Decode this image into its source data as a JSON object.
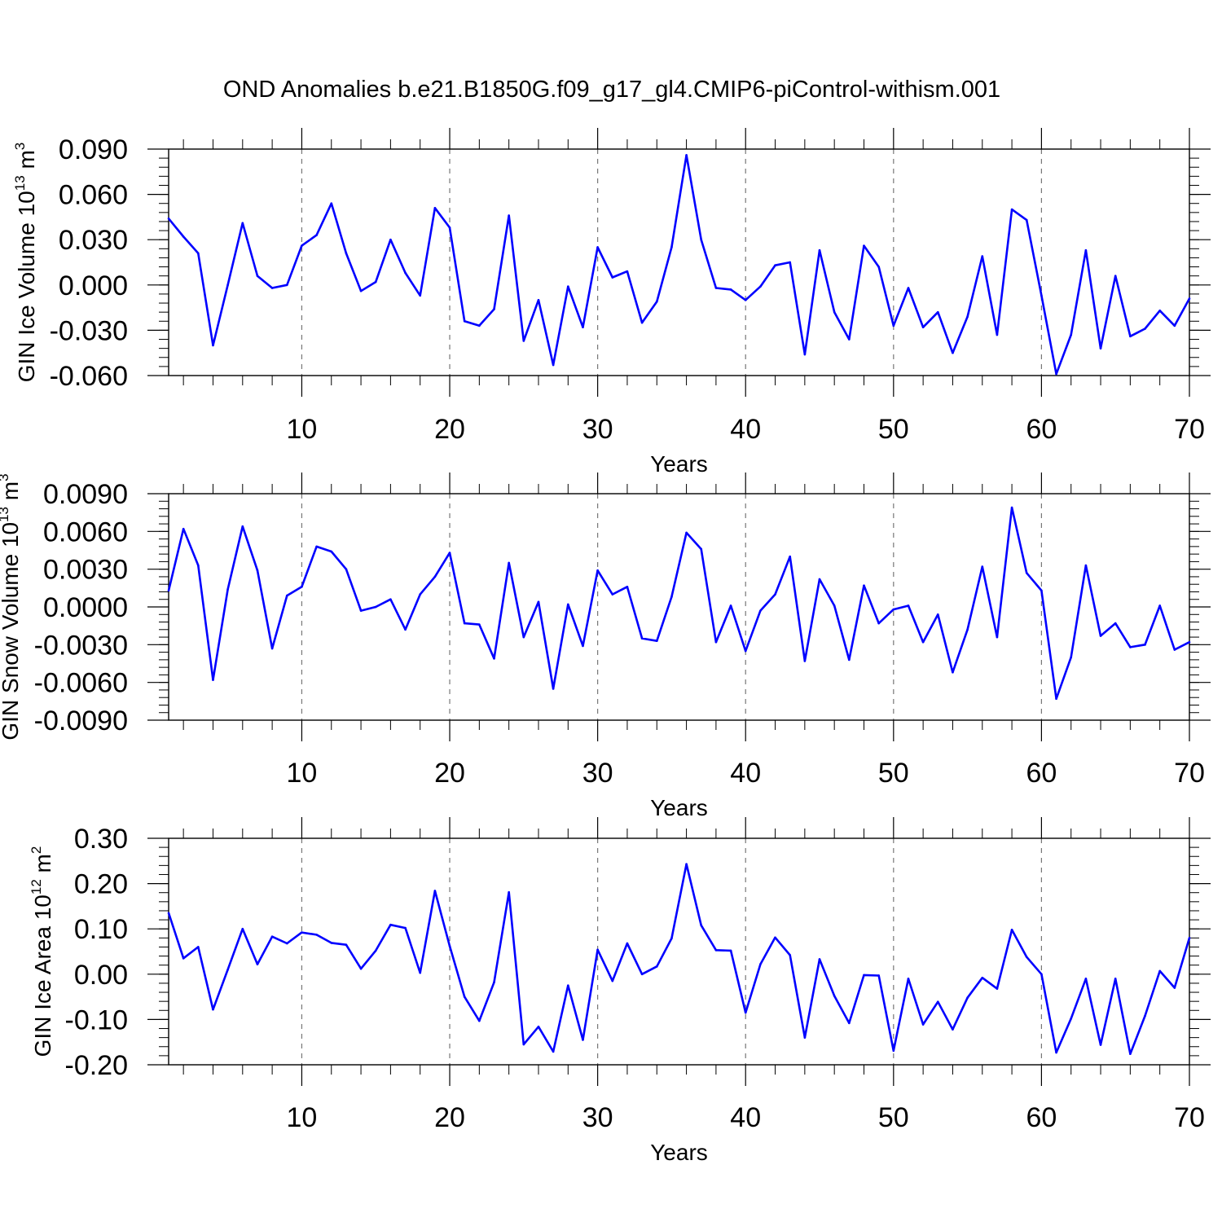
{
  "title": "OND Anomalies b.e21.B1850G.f09_g17_gl4.CMIP6-piControl-withism.001",
  "series_color": "#0000ff",
  "chart_data": [
    {
      "type": "line",
      "xlabel": "Years",
      "ylabel_text": "GIN Ice Volume 10",
      "ylabel_exp": "13",
      "ylabel_unit": "m",
      "ylabel_unit_exp": "3",
      "xlim": [
        1,
        70
      ],
      "ylim": [
        -0.06,
        0.09
      ],
      "yticks": [
        "0.090",
        "0.060",
        "0.030",
        "0.000",
        "-0.030",
        "-0.060"
      ],
      "ytick_values": [
        0.09,
        0.06,
        0.03,
        0.0,
        -0.03,
        -0.06
      ],
      "xticks": [
        "10",
        "20",
        "30",
        "40",
        "50",
        "60",
        "70"
      ],
      "xtick_values": [
        10,
        20,
        30,
        40,
        50,
        60,
        70
      ],
      "grid": "dashed vertical at major x ticks",
      "x": [
        1,
        2,
        3,
        4,
        5,
        6,
        7,
        8,
        9,
        10,
        11,
        12,
        13,
        14,
        15,
        16,
        17,
        18,
        19,
        20,
        21,
        22,
        23,
        24,
        25,
        26,
        27,
        28,
        29,
        30,
        31,
        32,
        33,
        34,
        35,
        36,
        37,
        38,
        39,
        40,
        41,
        42,
        43,
        44,
        45,
        46,
        47,
        48,
        49,
        50,
        51,
        52,
        53,
        54,
        55,
        56,
        57,
        58,
        59,
        60,
        61,
        62,
        63,
        64,
        65,
        66,
        67,
        68,
        69,
        70
      ],
      "values": [
        0.044,
        0.032,
        0.021,
        -0.04,
        0.0,
        0.041,
        0.006,
        -0.002,
        0.0,
        0.026,
        0.033,
        0.054,
        0.021,
        -0.004,
        0.002,
        0.03,
        0.008,
        -0.007,
        0.051,
        0.038,
        -0.024,
        -0.027,
        -0.016,
        0.046,
        -0.037,
        -0.01,
        -0.053,
        -0.001,
        -0.028,
        0.025,
        0.005,
        0.009,
        -0.025,
        -0.011,
        0.025,
        0.086,
        0.03,
        -0.002,
        -0.003,
        -0.01,
        -0.001,
        0.013,
        0.015,
        -0.046,
        0.023,
        -0.018,
        -0.036,
        0.026,
        0.012,
        -0.027,
        -0.002,
        -0.028,
        -0.018,
        -0.045,
        -0.021,
        0.019,
        -0.033,
        0.05,
        0.043,
        -0.007,
        -0.059,
        -0.033,
        0.023,
        -0.042,
        0.006,
        -0.034,
        -0.029,
        -0.017,
        -0.027,
        -0.009
      ]
    },
    {
      "type": "line",
      "xlabel": "Years",
      "ylabel_text": "GIN Snow Volume 10",
      "ylabel_exp": "13",
      "ylabel_unit": "m",
      "ylabel_unit_exp": "3",
      "xlim": [
        1,
        70
      ],
      "ylim": [
        -0.009,
        0.009
      ],
      "yticks": [
        "0.0090",
        "0.0060",
        "0.0030",
        "0.0000",
        "-0.0030",
        "-0.0060",
        "-0.0090"
      ],
      "ytick_values": [
        0.009,
        0.006,
        0.003,
        0.0,
        -0.003,
        -0.006,
        -0.009
      ],
      "xticks": [
        "10",
        "20",
        "30",
        "40",
        "50",
        "60",
        "70"
      ],
      "xtick_values": [
        10,
        20,
        30,
        40,
        50,
        60,
        70
      ],
      "grid": "dashed vertical at major x ticks",
      "x": [
        1,
        2,
        3,
        4,
        5,
        6,
        7,
        8,
        9,
        10,
        11,
        12,
        13,
        14,
        15,
        16,
        17,
        18,
        19,
        20,
        21,
        22,
        23,
        24,
        25,
        26,
        27,
        28,
        29,
        30,
        31,
        32,
        33,
        34,
        35,
        36,
        37,
        38,
        39,
        40,
        41,
        42,
        43,
        44,
        45,
        46,
        47,
        48,
        49,
        50,
        51,
        52,
        53,
        54,
        55,
        56,
        57,
        58,
        59,
        60,
        61,
        62,
        63,
        64,
        65,
        66,
        67,
        68,
        69,
        70
      ],
      "values": [
        0.0013,
        0.0062,
        0.0033,
        -0.0058,
        0.0014,
        0.0064,
        0.0029,
        -0.0033,
        0.0009,
        0.0016,
        0.0048,
        0.0044,
        0.003,
        -0.0003,
        0.0,
        0.0006,
        -0.0018,
        0.001,
        0.0024,
        0.0043,
        -0.0013,
        -0.0014,
        -0.0041,
        0.0035,
        -0.0024,
        0.0004,
        -0.0065,
        0.0002,
        -0.0031,
        0.0029,
        0.001,
        0.0016,
        -0.0025,
        -0.0027,
        0.0008,
        0.0059,
        0.0046,
        -0.0028,
        0.0001,
        -0.0035,
        -0.0003,
        0.001,
        0.004,
        -0.0043,
        0.0022,
        0.0001,
        -0.0042,
        0.0017,
        -0.0013,
        -0.0002,
        0.0001,
        -0.0028,
        -0.0006,
        -0.0052,
        -0.0018,
        0.0032,
        -0.0024,
        0.0079,
        0.0027,
        0.0013,
        -0.0073,
        -0.004,
        0.0033,
        -0.0023,
        -0.0013,
        -0.0032,
        -0.003,
        0.0001,
        -0.0034,
        -0.0028
      ]
    },
    {
      "type": "line",
      "xlabel": "Years",
      "ylabel_text": "GIN Ice Area 10",
      "ylabel_exp": "12",
      "ylabel_unit": "m",
      "ylabel_unit_exp": "2",
      "xlim": [
        1,
        70
      ],
      "ylim": [
        -0.2,
        0.3
      ],
      "yticks": [
        "0.30",
        "0.20",
        "0.10",
        "0.00",
        "-0.10",
        "-0.20"
      ],
      "ytick_values": [
        0.3,
        0.2,
        0.1,
        0.0,
        -0.1,
        -0.2
      ],
      "xticks": [
        "10",
        "20",
        "30",
        "40",
        "50",
        "60",
        "70"
      ],
      "xtick_values": [
        10,
        20,
        30,
        40,
        50,
        60,
        70
      ],
      "grid": "dashed vertical at major x ticks",
      "x": [
        1,
        2,
        3,
        4,
        5,
        6,
        7,
        8,
        9,
        10,
        11,
        12,
        13,
        14,
        15,
        16,
        17,
        18,
        19,
        20,
        21,
        22,
        23,
        24,
        25,
        26,
        27,
        28,
        29,
        30,
        31,
        32,
        33,
        34,
        35,
        36,
        37,
        38,
        39,
        40,
        41,
        42,
        43,
        44,
        45,
        46,
        47,
        48,
        49,
        50,
        51,
        52,
        53,
        54,
        55,
        56,
        57,
        58,
        59,
        60,
        61,
        62,
        63,
        64,
        65,
        66,
        67,
        68,
        69,
        70
      ],
      "values": [
        0.135,
        0.035,
        0.06,
        -0.078,
        0.01,
        0.1,
        0.022,
        0.083,
        0.068,
        0.092,
        0.087,
        0.069,
        0.065,
        0.012,
        0.052,
        0.109,
        0.102,
        0.003,
        0.184,
        0.062,
        -0.05,
        -0.103,
        -0.018,
        0.181,
        -0.155,
        -0.116,
        -0.171,
        -0.025,
        -0.145,
        0.054,
        -0.015,
        0.068,
        0.0,
        0.017,
        0.079,
        0.243,
        0.108,
        0.053,
        0.052,
        -0.085,
        0.022,
        0.081,
        0.042,
        -0.14,
        0.033,
        -0.048,
        -0.108,
        -0.002,
        -0.003,
        -0.169,
        -0.01,
        -0.111,
        -0.061,
        -0.122,
        -0.052,
        -0.008,
        -0.032,
        0.098,
        0.038,
        0.0,
        -0.173,
        -0.098,
        -0.01,
        -0.156,
        -0.01,
        -0.176,
        -0.092,
        0.007,
        -0.03,
        0.08
      ]
    }
  ]
}
